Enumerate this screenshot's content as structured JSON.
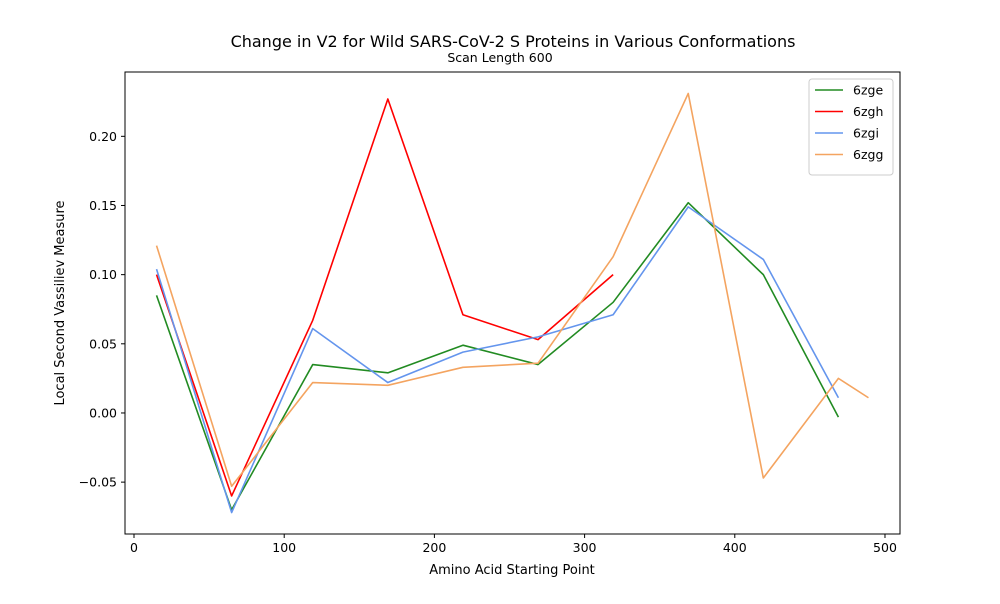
{
  "chart_data": {
    "type": "line",
    "title": "Change in V2 for Wild SARS-CoV-2 S Proteins in Various Conformations",
    "subtitle": "Scan Length 600",
    "xlabel": "Amino Acid Starting Point",
    "ylabel": "Local Second Vassiliev Measure",
    "xlim": [
      -6,
      510
    ],
    "ylim": [
      -0.0875,
      0.2465
    ],
    "xticks": [
      0,
      100,
      200,
      300,
      400,
      500
    ],
    "xtick_labels": [
      "0",
      "100",
      "200",
      "300",
      "400",
      "500"
    ],
    "yticks": [
      -0.05,
      0.0,
      0.05,
      0.1,
      0.15,
      0.2
    ],
    "ytick_labels": [
      "−0.05",
      "0.00",
      "0.05",
      "0.10",
      "0.15",
      "0.20"
    ],
    "grid": false,
    "legend_position": "top-right",
    "series": [
      {
        "name": "6zge",
        "color": "#228b22",
        "x": [
          15,
          65,
          119,
          169,
          219,
          269,
          319,
          369,
          419,
          469
        ],
        "y": [
          0.085,
          -0.07,
          0.035,
          0.029,
          0.049,
          0.035,
          0.08,
          0.152,
          0.1,
          -0.003
        ]
      },
      {
        "name": "6zgh",
        "color": "#ff0000",
        "x": [
          15,
          65,
          119,
          169,
          219,
          269,
          319
        ],
        "y": [
          0.1,
          -0.06,
          0.067,
          0.227,
          0.071,
          0.053,
          0.1
        ]
      },
      {
        "name": "6zgi",
        "color": "#6495ed",
        "x": [
          15,
          65,
          119,
          169,
          219,
          269,
          319,
          369,
          419,
          469
        ],
        "y": [
          0.104,
          -0.072,
          0.061,
          0.022,
          0.044,
          0.055,
          0.071,
          0.149,
          0.111,
          0.011
        ]
      },
      {
        "name": "6zgg",
        "color": "#f4a460",
        "x": [
          15,
          65,
          119,
          169,
          219,
          269,
          319,
          369,
          419,
          469,
          489
        ],
        "y": [
          0.121,
          -0.053,
          0.022,
          0.02,
          0.033,
          0.036,
          0.113,
          0.231,
          -0.047,
          0.025,
          0.011
        ]
      }
    ]
  }
}
